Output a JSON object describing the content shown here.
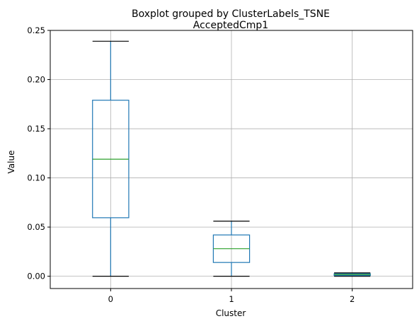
{
  "chart_data": {
    "type": "boxplot",
    "suptitle": "Boxplot grouped by ClusterLabels_TSNE",
    "title": "AcceptedCmp1",
    "xlabel": "Cluster",
    "ylabel": "Value",
    "categories": [
      "0",
      "1",
      "2"
    ],
    "ylim": [
      -0.0125,
      0.25
    ],
    "yticks": [
      0.0,
      0.05,
      0.1,
      0.15,
      0.2,
      0.25
    ],
    "ytick_labels": [
      "0.00",
      "0.05",
      "0.10",
      "0.15",
      "0.20",
      "0.25"
    ],
    "grid": true,
    "boxes": [
      {
        "category": "0",
        "whisker_low": 0.0,
        "q1": 0.0595,
        "median": 0.119,
        "q3": 0.179,
        "whisker_high": 0.239
      },
      {
        "category": "1",
        "whisker_low": 0.0,
        "q1": 0.014,
        "median": 0.028,
        "q3": 0.042,
        "whisker_high": 0.056
      },
      {
        "category": "2",
        "whisker_low": 0.0,
        "q1": 0.0008,
        "median": 0.0017,
        "q3": 0.0025,
        "whisker_high": 0.0034
      }
    ],
    "colors": {
      "box": "#1f77b4",
      "median": "#2ca02c",
      "grid": "#b0b0b0"
    }
  }
}
